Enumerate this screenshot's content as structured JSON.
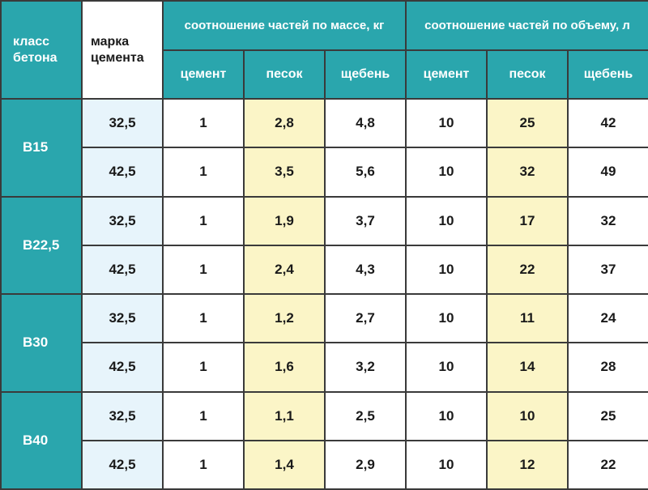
{
  "header": {
    "class_label": "класс бетона",
    "brand_label": "марка цемента",
    "mass_group": "соотношение частей по массе, кг",
    "volume_group": "соотношение частей по объему, л",
    "sub": [
      "цемент",
      "песок",
      "щебень",
      "цемент",
      "песок",
      "щебень"
    ]
  },
  "groups": [
    {
      "class": "B15",
      "rows": [
        {
          "brand": "32,5",
          "mass": [
            "1",
            "2,8",
            "4,8"
          ],
          "volume": [
            "10",
            "25",
            "42"
          ]
        },
        {
          "brand": "42,5",
          "mass": [
            "1",
            "3,5",
            "5,6"
          ],
          "volume": [
            "10",
            "32",
            "49"
          ]
        }
      ]
    },
    {
      "class": "B22,5",
      "rows": [
        {
          "brand": "32,5",
          "mass": [
            "1",
            "1,9",
            "3,7"
          ],
          "volume": [
            "10",
            "17",
            "32"
          ]
        },
        {
          "brand": "42,5",
          "mass": [
            "1",
            "2,4",
            "4,3"
          ],
          "volume": [
            "10",
            "22",
            "37"
          ]
        }
      ]
    },
    {
      "class": "B30",
      "rows": [
        {
          "brand": "32,5",
          "mass": [
            "1",
            "1,2",
            "2,7"
          ],
          "volume": [
            "10",
            "11",
            "24"
          ]
        },
        {
          "brand": "42,5",
          "mass": [
            "1",
            "1,6",
            "3,2"
          ],
          "volume": [
            "10",
            "14",
            "28"
          ]
        }
      ]
    },
    {
      "class": "B40",
      "rows": [
        {
          "brand": "32,5",
          "mass": [
            "1",
            "1,1",
            "2,5"
          ],
          "volume": [
            "10",
            "10",
            "25"
          ]
        },
        {
          "brand": "42,5",
          "mass": [
            "1",
            "1,4",
            "2,9"
          ],
          "volume": [
            "10",
            "12",
            "22"
          ]
        }
      ]
    }
  ],
  "colors": {
    "header_teal": "#2aa6ad",
    "brand_column": "#e7f4fb",
    "sand_column": "#fbf5c7"
  }
}
